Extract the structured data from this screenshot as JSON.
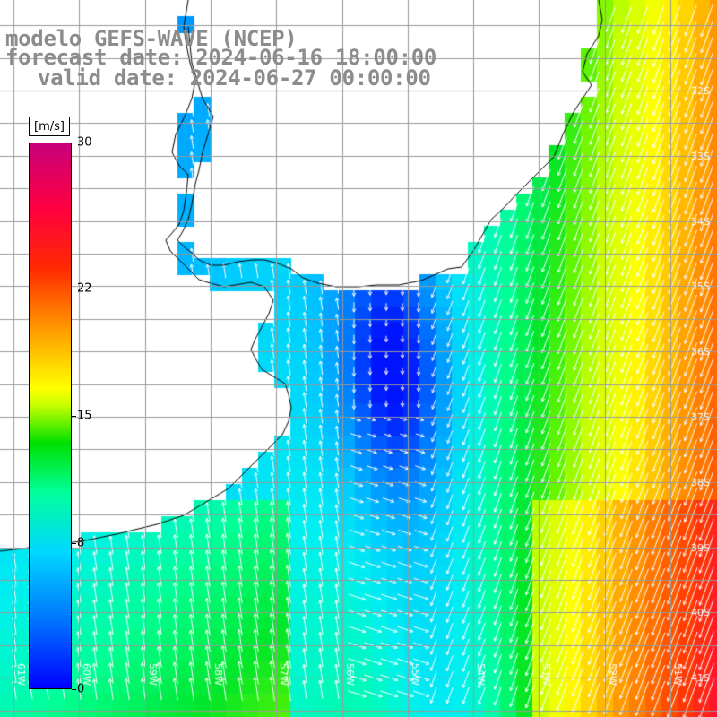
{
  "title": {
    "line1": "modelo GEFS-WAVE (NCEP)",
    "line2": "forecast date: 2024-06-16 18:00:00",
    "line3": "valid date: 2024-06-27 00:00:00"
  },
  "colorbar": {
    "unit": "[m/s]",
    "ticks": [
      "30",
      "22",
      "15",
      "8",
      "0"
    ],
    "tick_values": [
      30,
      22,
      15,
      8,
      0
    ],
    "range": [
      0,
      30
    ]
  },
  "map": {
    "lon_range": [
      -61,
      -50
    ],
    "lat_range": [
      -41.2,
      -31.4
    ],
    "lat_labels": [
      "32S",
      "33S",
      "34S",
      "35S",
      "36S",
      "37S",
      "38S",
      "39S",
      "40S",
      "41S"
    ],
    "lon_labels": [
      "61W",
      "60W",
      "59W",
      "58W",
      "57W",
      "56W",
      "55W",
      "54W",
      "53W",
      "52W",
      "51W"
    ],
    "coastline_color": "#000000",
    "grid_color": "#999999",
    "arrow_color": "#ffffff",
    "land_color": "#ffffff"
  }
}
